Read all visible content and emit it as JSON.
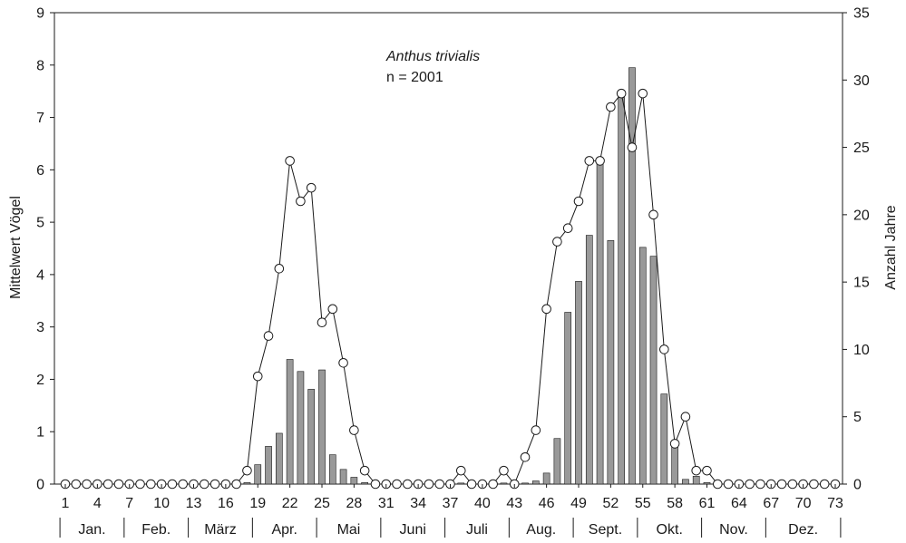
{
  "chart_data": {
    "type": "bar+line",
    "annotation": {
      "species": "Anthus trivialis",
      "n_label": "n = 2001"
    },
    "x": {
      "min": 1,
      "max": 73,
      "tick_labels": [
        "1",
        "4",
        "7",
        "10",
        "13",
        "16",
        "19",
        "22",
        "25",
        "28",
        "31",
        "34",
        "37",
        "40",
        "43",
        "46",
        "49",
        "52",
        "55",
        "58",
        "61",
        "64",
        "67",
        "70",
        "73"
      ]
    },
    "y_left": {
      "label": "Mittelwert Vögel",
      "min": 0,
      "max": 9,
      "tick_labels": [
        "0",
        "1",
        "2",
        "3",
        "4",
        "5",
        "6",
        "7",
        "8",
        "9"
      ]
    },
    "y_right": {
      "label": "Anzahl Jahre",
      "min": 0,
      "max": 35,
      "tick_labels": [
        "0",
        "5",
        "10",
        "15",
        "20",
        "25",
        "30",
        "35"
      ]
    },
    "months": [
      {
        "label": "Jan.",
        "start": 0.5,
        "end": 6.5
      },
      {
        "label": "Feb.",
        "start": 6.5,
        "end": 12.5
      },
      {
        "label": "März",
        "start": 12.5,
        "end": 18.5
      },
      {
        "label": "Apr.",
        "start": 18.5,
        "end": 24.5
      },
      {
        "label": "Mai",
        "start": 24.5,
        "end": 30.5
      },
      {
        "label": "Juni",
        "start": 30.5,
        "end": 36.5
      },
      {
        "label": "Juli",
        "start": 36.5,
        "end": 42.5
      },
      {
        "label": "Aug.",
        "start": 42.5,
        "end": 48.5
      },
      {
        "label": "Sept.",
        "start": 48.5,
        "end": 54.5
      },
      {
        "label": "Okt.",
        "start": 54.5,
        "end": 60.5
      },
      {
        "label": "Nov.",
        "start": 60.5,
        "end": 66.5
      },
      {
        "label": "Dez.",
        "start": 66.5,
        "end": 73.5
      }
    ],
    "series": [
      {
        "name": "Mittelwert Vögel",
        "type": "bar",
        "axis": "left",
        "color": "#999999",
        "x": [
          18,
          19,
          20,
          21,
          22,
          23,
          24,
          25,
          26,
          27,
          28,
          29,
          38,
          42,
          44,
          45,
          46,
          47,
          48,
          49,
          50,
          51,
          52,
          53,
          54,
          55,
          56,
          57,
          58,
          59,
          60,
          61
        ],
        "values": [
          0.03,
          0.37,
          0.72,
          0.97,
          2.38,
          2.15,
          1.81,
          2.18,
          0.56,
          0.28,
          0.13,
          0.03,
          0.02,
          0.02,
          0.02,
          0.06,
          0.21,
          0.87,
          3.28,
          3.87,
          4.75,
          6.14,
          4.65,
          7.38,
          7.95,
          4.52,
          4.35,
          1.72,
          0.81,
          0.09,
          0.15,
          0.03
        ]
      },
      {
        "name": "Anzahl Jahre",
        "type": "line",
        "axis": "right",
        "color": "#1a1a1a",
        "x": [
          1,
          2,
          3,
          4,
          5,
          6,
          7,
          8,
          9,
          10,
          11,
          12,
          13,
          14,
          15,
          16,
          17,
          18,
          19,
          20,
          21,
          22,
          23,
          24,
          25,
          26,
          27,
          28,
          29,
          30,
          31,
          32,
          33,
          34,
          35,
          36,
          37,
          38,
          39,
          40,
          41,
          42,
          43,
          44,
          45,
          46,
          47,
          48,
          49,
          50,
          51,
          52,
          53,
          54,
          55,
          56,
          57,
          58,
          59,
          60,
          61,
          62,
          63,
          64,
          65,
          66,
          67,
          68,
          69,
          70,
          71,
          72,
          73
        ],
        "values": [
          0,
          0,
          0,
          0,
          0,
          0,
          0,
          0,
          0,
          0,
          0,
          0,
          0,
          0,
          0,
          0,
          0,
          1,
          8,
          11,
          16,
          24,
          21,
          22,
          12,
          13,
          9,
          4,
          1,
          0,
          0,
          0,
          0,
          0,
          0,
          0,
          0,
          1,
          0,
          0,
          0,
          1,
          0,
          2,
          4,
          13,
          18,
          19,
          21,
          24,
          24,
          28,
          29,
          25,
          29,
          20,
          10,
          3,
          5,
          1,
          1,
          0,
          0,
          0,
          0,
          0,
          0,
          0,
          0,
          0,
          0,
          0,
          0
        ]
      }
    ]
  }
}
